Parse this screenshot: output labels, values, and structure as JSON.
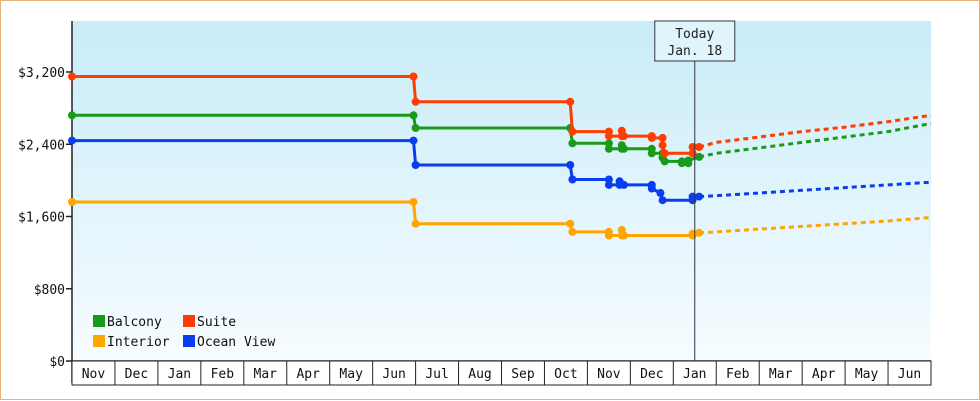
{
  "chart_data": {
    "type": "line",
    "title": "",
    "xlabel": "",
    "ylabel": "",
    "ylim": [
      0,
      3200
    ],
    "y_ticks": [
      "$0",
      "$800",
      "$1,600",
      "$2,400",
      "$3,200"
    ],
    "y_tick_values": [
      0,
      800,
      1600,
      2400,
      3200
    ],
    "months": [
      "Nov",
      "Dec",
      "Jan",
      "Feb",
      "Mar",
      "Apr",
      "May",
      "Jun",
      "Jul",
      "Aug",
      "Sep",
      "Oct",
      "Nov",
      "Dec",
      "Jan",
      "Feb",
      "Mar",
      "Apr",
      "May",
      "Jun"
    ],
    "x_range": [
      0,
      20
    ],
    "grid": false,
    "today": {
      "line1": "Today",
      "line2": "Jan. 18",
      "x": 14.5
    },
    "legend": [
      {
        "label": "Balcony",
        "color": "#1a9a1a"
      },
      {
        "label": "Suite",
        "color": "#ff3d00"
      },
      {
        "label": "Interior",
        "color": "#ffa500"
      },
      {
        "label": "Ocean View",
        "color": "#0a3cf0"
      }
    ],
    "series": [
      {
        "name": "Suite",
        "color": "#ff3d00",
        "points": [
          [
            0,
            3150
          ],
          [
            7.95,
            3150
          ],
          [
            7.95,
            3150
          ],
          [
            8.0,
            2870
          ],
          [
            11.6,
            2870
          ],
          [
            11.6,
            2870
          ],
          [
            11.65,
            2540
          ],
          [
            12.5,
            2540
          ],
          [
            12.5,
            2490
          ],
          [
            12.8,
            2490
          ],
          [
            12.8,
            2550
          ],
          [
            12.85,
            2490
          ],
          [
            13.5,
            2490
          ],
          [
            13.5,
            2470
          ],
          [
            13.75,
            2470
          ],
          [
            13.75,
            2390
          ],
          [
            13.8,
            2300
          ],
          [
            14.45,
            2300
          ],
          [
            14.45,
            2370
          ],
          [
            14.6,
            2370
          ]
        ],
        "projection": [
          [
            14.6,
            2370
          ],
          [
            15,
            2420
          ],
          [
            16,
            2480
          ],
          [
            17,
            2540
          ],
          [
            18,
            2590
          ],
          [
            19,
            2650
          ],
          [
            20,
            2720
          ]
        ]
      },
      {
        "name": "Balcony",
        "color": "#1a9a1a",
        "points": [
          [
            0,
            2720
          ],
          [
            7.95,
            2720
          ],
          [
            7.95,
            2720
          ],
          [
            8.0,
            2580
          ],
          [
            11.6,
            2580
          ],
          [
            11.6,
            2580
          ],
          [
            11.65,
            2410
          ],
          [
            12.5,
            2410
          ],
          [
            12.5,
            2350
          ],
          [
            12.8,
            2350
          ],
          [
            12.8,
            2390
          ],
          [
            12.85,
            2350
          ],
          [
            13.5,
            2350
          ],
          [
            13.5,
            2300
          ],
          [
            13.75,
            2300
          ],
          [
            13.75,
            2250
          ],
          [
            13.8,
            2210
          ],
          [
            14.2,
            2210
          ],
          [
            14.2,
            2190
          ],
          [
            14.35,
            2190
          ],
          [
            14.35,
            2220
          ],
          [
            14.6,
            2260
          ]
        ],
        "projection": [
          [
            14.6,
            2260
          ],
          [
            15,
            2300
          ],
          [
            16,
            2360
          ],
          [
            17,
            2420
          ],
          [
            18,
            2480
          ],
          [
            19,
            2540
          ],
          [
            20,
            2630
          ]
        ]
      },
      {
        "name": "Ocean View",
        "color": "#0a3cf0",
        "points": [
          [
            0,
            2440
          ],
          [
            7.95,
            2440
          ],
          [
            7.95,
            2440
          ],
          [
            8.0,
            2170
          ],
          [
            11.6,
            2170
          ],
          [
            11.6,
            2170
          ],
          [
            11.65,
            2010
          ],
          [
            12.5,
            2010
          ],
          [
            12.5,
            1950
          ],
          [
            12.75,
            1950
          ],
          [
            12.75,
            1990
          ],
          [
            12.85,
            1950
          ],
          [
            13.5,
            1950
          ],
          [
            13.5,
            1910
          ],
          [
            13.7,
            1860
          ],
          [
            13.75,
            1780
          ],
          [
            14.45,
            1780
          ],
          [
            14.45,
            1820
          ],
          [
            14.6,
            1820
          ]
        ],
        "projection": [
          [
            14.6,
            1820
          ],
          [
            15,
            1830
          ],
          [
            16,
            1860
          ],
          [
            17,
            1890
          ],
          [
            18,
            1920
          ],
          [
            19,
            1950
          ],
          [
            20,
            1980
          ]
        ]
      },
      {
        "name": "Interior",
        "color": "#ffa500",
        "points": [
          [
            0,
            1760
          ],
          [
            7.95,
            1760
          ],
          [
            7.95,
            1760
          ],
          [
            8.0,
            1520
          ],
          [
            11.6,
            1520
          ],
          [
            11.6,
            1520
          ],
          [
            11.65,
            1430
          ],
          [
            12.5,
            1430
          ],
          [
            12.5,
            1390
          ],
          [
            12.8,
            1390
          ],
          [
            12.8,
            1450
          ],
          [
            12.85,
            1390
          ],
          [
            13.5,
            1390
          ],
          [
            13.5,
            1390
          ],
          [
            14.45,
            1390
          ],
          [
            14.45,
            1410
          ],
          [
            14.6,
            1420
          ]
        ],
        "projection": [
          [
            14.6,
            1420
          ],
          [
            15,
            1430
          ],
          [
            16,
            1460
          ],
          [
            17,
            1490
          ],
          [
            18,
            1520
          ],
          [
            19,
            1550
          ],
          [
            20,
            1590
          ]
        ]
      }
    ]
  }
}
